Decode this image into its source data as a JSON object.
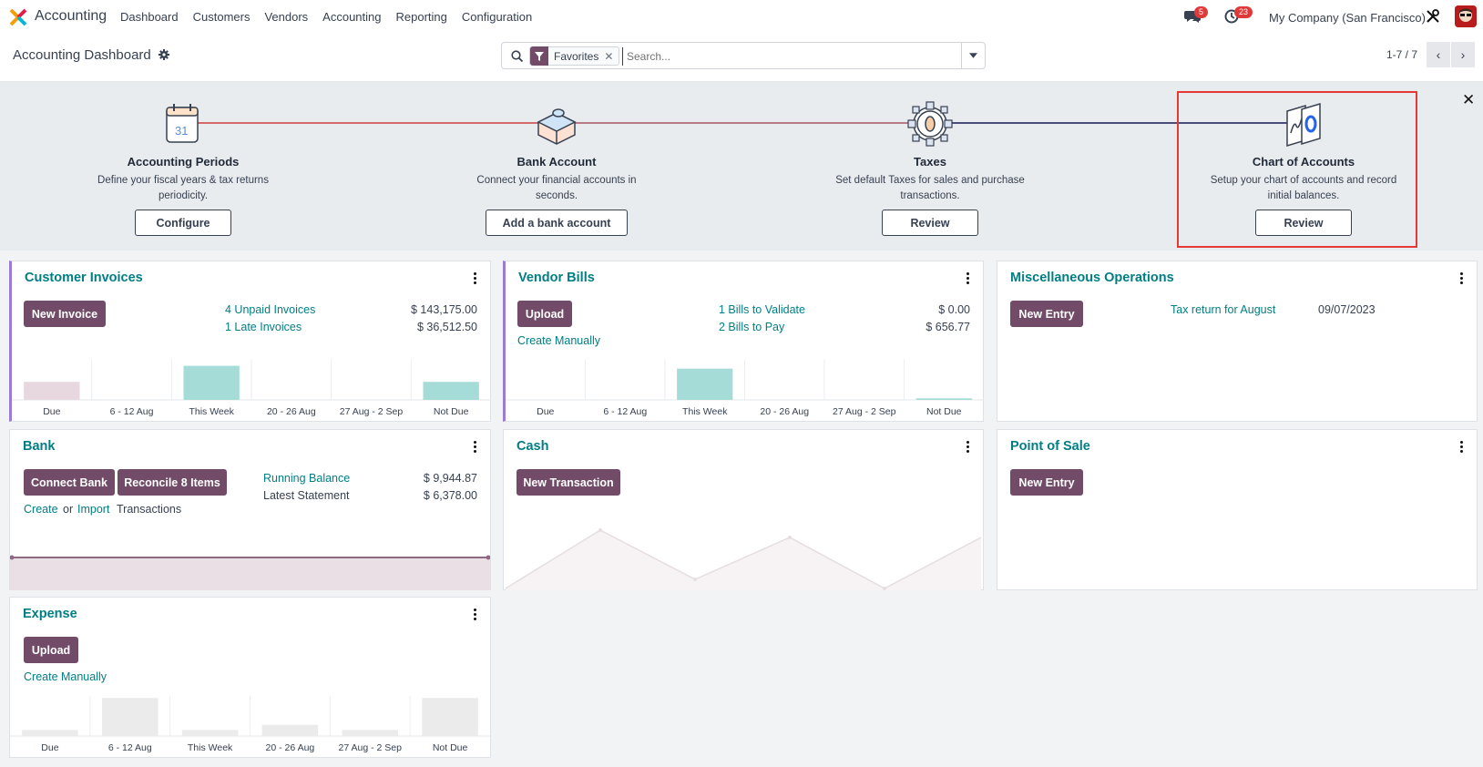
{
  "navbar": {
    "app_name": "Accounting",
    "menu": [
      "Dashboard",
      "Customers",
      "Vendors",
      "Accounting",
      "Reporting",
      "Configuration"
    ],
    "messages_badge": "5",
    "activities_badge": "23",
    "company": "My Company (San Francisco)"
  },
  "control": {
    "title": "Accounting Dashboard",
    "facet": "Favorites",
    "search_placeholder": "Search...",
    "pager": "1-7 / 7"
  },
  "onboarding": {
    "steps": [
      {
        "title": "Accounting Periods",
        "desc1": "Define your fiscal years & tax returns",
        "desc2": "periodicity.",
        "button": "Configure"
      },
      {
        "title": "Bank Account",
        "desc1": "Connect your financial accounts in",
        "desc2": "seconds.",
        "button": "Add a bank account"
      },
      {
        "title": "Taxes",
        "desc1": "Set default Taxes for sales and purchase",
        "desc2": "transactions.",
        "button": "Review"
      },
      {
        "title": "Chart of Accounts",
        "desc1": "Setup your chart of accounts and record",
        "desc2": "initial balances.",
        "button": "Review"
      }
    ],
    "calendar_day": "31"
  },
  "cards": {
    "customer_invoices": {
      "title": "Customer Invoices",
      "button": "New Invoice",
      "line1_label": "4 Unpaid Invoices",
      "line1_amount": "$ 143,175.00",
      "line2_label": "1 Late Invoices",
      "line2_amount": "$ 36,512.50",
      "axis": [
        "Due",
        "6 - 12 Aug",
        "This Week",
        "20 - 26 Aug",
        "27 Aug - 2 Sep",
        "Not Due"
      ],
      "bar_values": [
        0.45,
        0,
        0.85,
        0,
        0,
        0.45
      ],
      "bar_colors": [
        "#e7d8df",
        "#e7d8df",
        "#a6dcd8",
        "#a6dcd8",
        "#a6dcd8",
        "#a6dcd8"
      ]
    },
    "vendor_bills": {
      "title": "Vendor Bills",
      "button": "Upload",
      "create_link": "Create Manually",
      "line1_label": "1 Bills to Validate",
      "line1_amount": "$ 0.00",
      "line2_label": "2 Bills to Pay",
      "line2_amount": "$ 656.77",
      "axis": [
        "Due",
        "6 - 12 Aug",
        "This Week",
        "20 - 26 Aug",
        "27 Aug - 2 Sep",
        "Not Due"
      ],
      "bar_values": [
        0,
        0,
        0.78,
        0,
        0,
        0.04
      ],
      "bar_colors": [
        "#a6dcd8",
        "#a6dcd8",
        "#a6dcd8",
        "#a6dcd8",
        "#a6dcd8",
        "#a6dcd8"
      ]
    },
    "misc": {
      "title": "Miscellaneous Operations",
      "button": "New Entry",
      "link": "Tax return for August",
      "date": "09/07/2023"
    },
    "bank": {
      "title": "Bank",
      "button1": "Connect Bank",
      "button2": "Reconcile 8 Items",
      "create": "Create",
      "or": "or",
      "import": "Import",
      "transactions": "Transactions",
      "running_label": "Running Balance",
      "running_amount": "$ 9,944.87",
      "statement_label": "Latest Statement",
      "statement_amount": "$ 6,378.00"
    },
    "cash": {
      "title": "Cash",
      "button": "New Transaction"
    },
    "pos": {
      "title": "Point of Sale",
      "button": "New Entry"
    },
    "expense": {
      "title": "Expense",
      "button": "Upload",
      "create_link": "Create Manually",
      "axis": [
        "Due",
        "6 - 12 Aug",
        "This Week",
        "20 - 26 Aug",
        "27 Aug - 2 Sep",
        "Not Due"
      ],
      "bar_values": [
        0.15,
        0.95,
        0.15,
        0.28,
        0.15,
        0.95
      ],
      "bar_colors": [
        "#ebebeb",
        "#ebebeb",
        "#ebebeb",
        "#ebebeb",
        "#ebebeb",
        "#ebebeb"
      ]
    }
  },
  "colors": {
    "brand": "#714b67",
    "link": "#017e84",
    "highlight": "#e53935"
  }
}
